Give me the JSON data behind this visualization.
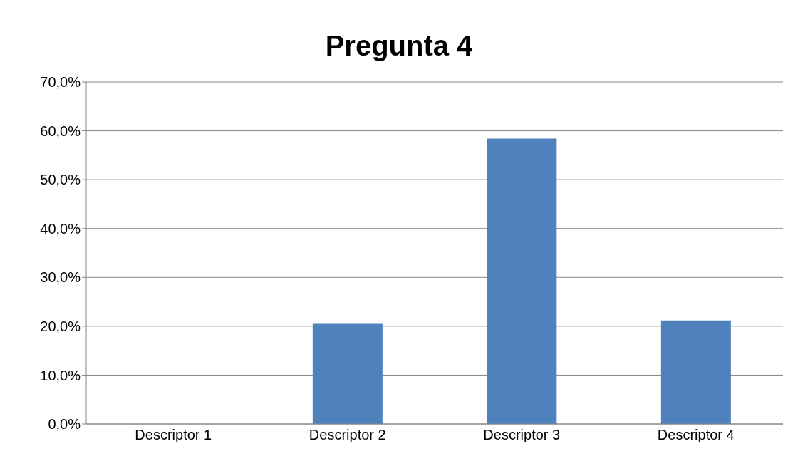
{
  "chart_data": {
    "type": "bar",
    "title": "Pregunta 4",
    "categories": [
      "Descriptor 1",
      "Descriptor 2",
      "Descriptor 3",
      "Descriptor 4"
    ],
    "values": [
      0,
      20.5,
      58.4,
      21.2
    ],
    "color": "#4f81bd",
    "ylim": [
      0,
      70
    ],
    "yticks": [
      {
        "value": 0,
        "label": "0,0%"
      },
      {
        "value": 10,
        "label": "10,0%"
      },
      {
        "value": 20,
        "label": "20,0%"
      },
      {
        "value": 30,
        "label": "30,0%"
      },
      {
        "value": 40,
        "label": "40,0%"
      },
      {
        "value": 50,
        "label": "50,0%"
      },
      {
        "value": 60,
        "label": "60,0%"
      },
      {
        "value": 70,
        "label": "70,0%"
      }
    ],
    "grid": "y",
    "legend": false
  }
}
